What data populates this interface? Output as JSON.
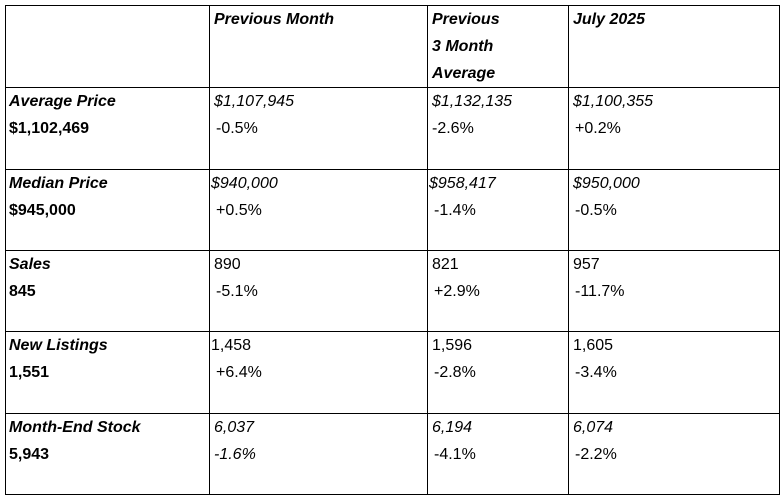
{
  "headers": [
    "",
    "Previous Month",
    "Previous\n3 Month\nAverage",
    "July 2025"
  ],
  "header_lines": {
    "col2": "Previous Month",
    "col3_line1": "Previous",
    "col3_line2": "3 Month",
    "col3_line3": "Average",
    "col4": "July 2025"
  },
  "rows": [
    {
      "metric": "Average Price",
      "value": "$1,102,469",
      "previous_month": {
        "value": "$1,107,945",
        "change": "-0.5%"
      },
      "previous_3_month_average": {
        "value": "$1,132,135",
        "change": "-2.6%"
      },
      "july_2025": {
        "value": "$1,100,355",
        "change": "+0.2%"
      }
    },
    {
      "metric": "Median Price",
      "value": "$945,000",
      "previous_month": {
        "value": "$940,000",
        "change": "+0.5%"
      },
      "previous_3_month_average": {
        "value": "$958,417",
        "change": "-1.4%"
      },
      "july_2025": {
        "value": "$950,000",
        "change": "-0.5%"
      }
    },
    {
      "metric": "Sales",
      "value": "845",
      "previous_month": {
        "value": "890",
        "change": "-5.1%"
      },
      "previous_3_month_average": {
        "value": "821",
        "change": "+2.9%"
      },
      "july_2025": {
        "value": "957",
        "change": "-11.7%"
      }
    },
    {
      "metric": "New Listings",
      "value": "1,551",
      "previous_month": {
        "value": "1,458",
        "change": "+6.4%"
      },
      "previous_3_month_average": {
        "value": "1,596",
        "change": "-2.8%"
      },
      "july_2025": {
        "value": "1,605",
        "change": "-3.4%"
      }
    },
    {
      "metric": "Month-End Stock",
      "value": "5,943",
      "previous_month": {
        "value": "6,037",
        "change": "-1.6%"
      },
      "previous_3_month_average": {
        "value": "6,194",
        "change": "-4.1%"
      },
      "july_2025": {
        "value": "6,074",
        "change": "-2.2%"
      }
    }
  ]
}
